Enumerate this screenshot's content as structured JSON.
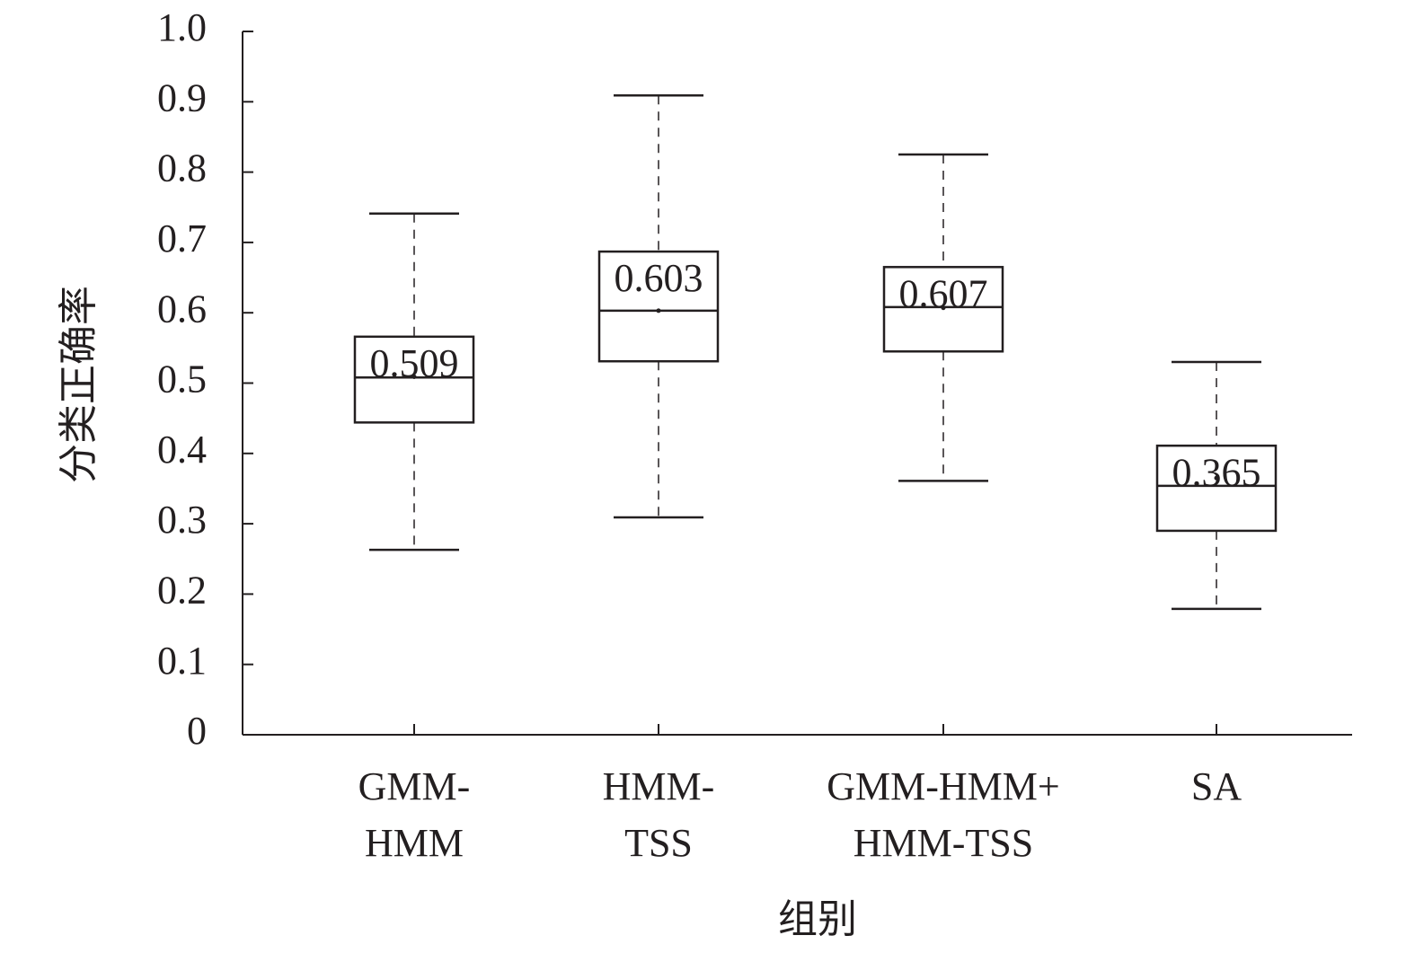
{
  "chart_data": {
    "type": "box",
    "y_label": "分类正确率",
    "x_label": "组别",
    "categories": [
      [
        "GMM-",
        "HMM"
      ],
      [
        "HMM-",
        "TSS"
      ],
      [
        "GMM-HMM+",
        "HMM-TSS"
      ],
      [
        "SA"
      ]
    ],
    "maxs": [
      0.741,
      0.909,
      0.825,
      0.53
    ],
    "q3s": [
      0.566,
      0.687,
      0.665,
      0.411
    ],
    "medians": [
      0.508,
      0.603,
      0.608,
      0.354
    ],
    "q1s": [
      0.444,
      0.531,
      0.545,
      0.29
    ],
    "mins": [
      0.263,
      0.309,
      0.361,
      0.179
    ],
    "means": [
      0.509,
      0.603,
      0.607,
      0.365
    ],
    "color": "#231f20",
    "ylim": [
      0,
      1
    ],
    "yticks": [
      0,
      0.1,
      0.2,
      0.3,
      0.4,
      0.5,
      0.6,
      0.7,
      0.8,
      0.9,
      {
        "value": 1,
        "label": "1.0"
      }
    ]
  }
}
